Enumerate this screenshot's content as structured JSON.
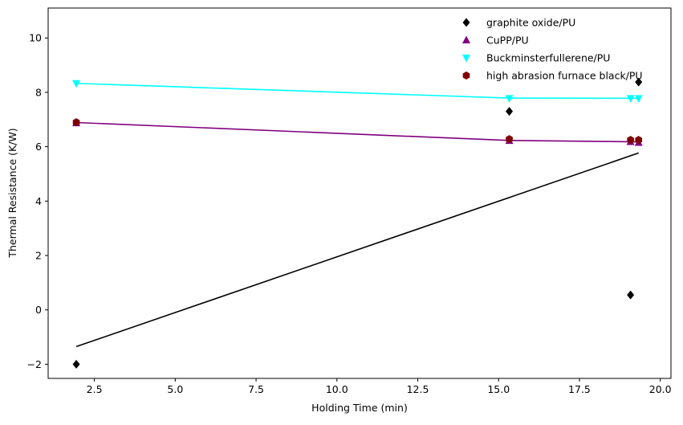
{
  "chart_data": {
    "type": "scatter",
    "title": "",
    "xlabel": "Holding Time (min)",
    "ylabel": "Thermal Resistance (K/W)",
    "xlim": [
      1.07,
      20.33
    ],
    "ylim": [
      -2.52,
      11.1
    ],
    "xticks": [
      2.5,
      5.0,
      7.5,
      10.0,
      12.5,
      15.0,
      17.5,
      20.0
    ],
    "xtick_labels": [
      "2.5",
      "5.0",
      "7.5",
      "10.0",
      "12.5",
      "15.0",
      "17.5",
      "20.0"
    ],
    "yticks": [
      -2,
      0,
      2,
      4,
      6,
      8,
      10
    ],
    "ytick_labels": [
      "−2",
      "0",
      "2",
      "4",
      "6",
      "8",
      "10"
    ],
    "grid": false,
    "legend_position": "top-right",
    "series": [
      {
        "name": "graphite oxide/PU",
        "color": "#000000",
        "marker": "diamond",
        "x": [
          1.94,
          15.33,
          19.08,
          19.33
        ],
        "y": [
          -2.0,
          7.3,
          0.55,
          8.38
        ],
        "fit": {
          "x": [
            1.94,
            19.33
          ],
          "y": [
            -1.35,
            5.77
          ]
        }
      },
      {
        "name": "CuPP/PU",
        "color": "#800080",
        "marker": "triangle-up",
        "x": [
          1.94,
          15.33,
          19.08,
          19.33
        ],
        "y": [
          6.87,
          6.22,
          6.18,
          6.15
        ],
        "fit": {
          "x": [
            1.94,
            15.33,
            19.33
          ],
          "y": [
            6.89,
            6.23,
            6.18
          ]
        }
      },
      {
        "name": "Buckminsterfullerene/PU",
        "color": "#00ffff",
        "marker": "triangle-down",
        "x": [
          1.94,
          15.33,
          19.08,
          19.33
        ],
        "y": [
          8.33,
          7.78,
          7.78,
          7.78
        ],
        "fit": {
          "x": [
            1.94,
            15.33,
            19.33
          ],
          "y": [
            8.33,
            7.79,
            7.78
          ]
        }
      },
      {
        "name": "high abrasion furnace black/PU",
        "color": "#800000",
        "marker": "hexagon",
        "x": [
          1.94,
          15.33,
          19.08,
          19.33
        ],
        "y": [
          6.9,
          6.28,
          6.25,
          6.25
        ],
        "fit": null
      }
    ]
  }
}
